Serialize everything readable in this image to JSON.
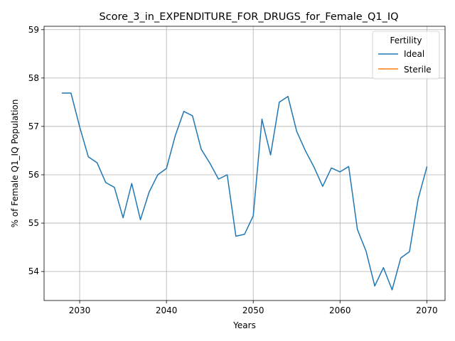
{
  "chart_data": {
    "type": "line",
    "title": "Score_3_in_EXPENDITURE_FOR_DRUGS_for_Female_Q1_IQ",
    "xlabel": "Years",
    "ylabel": "% of Female Q1_IQ Population",
    "xlim": [
      2025.9,
      2072.1
    ],
    "ylim": [
      53.4,
      59.07
    ],
    "xticks": [
      2030,
      2040,
      2050,
      2060,
      2070
    ],
    "yticks": [
      54,
      55,
      56,
      57,
      58,
      59
    ],
    "grid": true,
    "legend": {
      "title": "Fertility",
      "placement": "upper-right"
    },
    "series": [
      {
        "name": "Ideal",
        "color": "#1f77b4",
        "x": [
          2028,
          2029,
          2030,
          2031,
          2032,
          2033,
          2034,
          2035,
          2036,
          2037,
          2038,
          2039,
          2040,
          2041,
          2042,
          2043,
          2044,
          2045,
          2046,
          2047,
          2048,
          2049,
          2050,
          2051,
          2052,
          2053,
          2054,
          2055,
          2056,
          2057,
          2058,
          2059,
          2060,
          2061,
          2062,
          2063,
          2064,
          2065,
          2066,
          2067,
          2068,
          2069,
          2070
        ],
        "y": [
          57.69,
          57.69,
          56.99,
          56.37,
          56.25,
          55.84,
          55.74,
          55.11,
          55.82,
          55.07,
          55.64,
          56.0,
          56.13,
          56.8,
          57.31,
          57.22,
          56.53,
          56.24,
          55.91,
          56.0,
          54.73,
          54.77,
          55.15,
          57.15,
          56.41,
          57.5,
          57.62,
          56.9,
          56.5,
          56.16,
          55.76,
          56.14,
          56.06,
          56.17,
          54.87,
          54.42,
          53.7,
          54.08,
          53.62,
          54.28,
          54.41,
          55.5,
          56.16
        ]
      },
      {
        "name": "Sterile",
        "color": "#ff7f0e",
        "x": [],
        "y": []
      }
    ]
  }
}
